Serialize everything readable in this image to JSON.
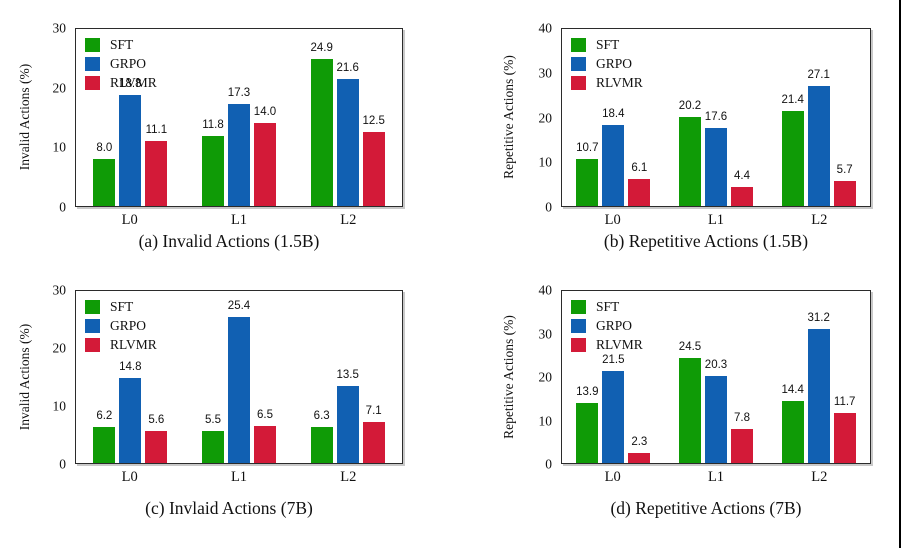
{
  "page": {
    "background": "#ffffff",
    "right_edge_line_color": "#000000"
  },
  "legend": {
    "items": [
      {
        "label": "SFT",
        "color": "#0f9b06"
      },
      {
        "label": "GRPO",
        "color": "#1160b2"
      },
      {
        "label": "RLVMR",
        "color": "#d31a38"
      }
    ],
    "position": "upper-left"
  },
  "chart_data": [
    {
      "type": "bar",
      "caption": "(a) Invalid Actions (1.5B)",
      "ylabel": "Invalid Actions (%)",
      "xlabel": "",
      "categories": [
        "L0",
        "L1",
        "L2"
      ],
      "series": [
        {
          "name": "SFT",
          "color": "#0f9b06",
          "values": [
            8.0,
            11.8,
            24.9
          ]
        },
        {
          "name": "GRPO",
          "color": "#1160b2",
          "values": [
            18.8,
            17.3,
            21.6
          ]
        },
        {
          "name": "RLVMR",
          "color": "#d31a38",
          "values": [
            11.1,
            14.0,
            12.5
          ]
        }
      ],
      "ylim": [
        0,
        30
      ],
      "yticks": [
        0,
        10,
        20,
        30
      ],
      "grid": false,
      "legend_position": "upper-left",
      "value_labels": true
    },
    {
      "type": "bar",
      "caption": "(b) Repetitive Actions (1.5B)",
      "ylabel": "Repetitive Actions (%)",
      "xlabel": "",
      "categories": [
        "L0",
        "L1",
        "L2"
      ],
      "series": [
        {
          "name": "SFT",
          "color": "#0f9b06",
          "values": [
            10.7,
            20.2,
            21.4
          ]
        },
        {
          "name": "GRPO",
          "color": "#1160b2",
          "values": [
            18.4,
            17.6,
            27.1
          ]
        },
        {
          "name": "RLVMR",
          "color": "#d31a38",
          "values": [
            6.1,
            4.4,
            5.7
          ]
        }
      ],
      "ylim": [
        0,
        40
      ],
      "yticks": [
        0,
        10,
        20,
        30,
        40
      ],
      "grid": false,
      "legend_position": "upper-left",
      "value_labels": true
    },
    {
      "type": "bar",
      "caption": "(c) Invlaid Actions (7B)",
      "ylabel": "Invalid Actions (%)",
      "xlabel": "",
      "categories": [
        "L0",
        "L1",
        "L2"
      ],
      "series": [
        {
          "name": "SFT",
          "color": "#0f9b06",
          "values": [
            6.2,
            5.5,
            6.3
          ]
        },
        {
          "name": "GRPO",
          "color": "#1160b2",
          "values": [
            14.8,
            25.4,
            13.5
          ]
        },
        {
          "name": "RLVMR",
          "color": "#d31a38",
          "values": [
            5.6,
            6.5,
            7.1
          ]
        }
      ],
      "ylim": [
        0,
        30
      ],
      "yticks": [
        0,
        10,
        20,
        30
      ],
      "grid": false,
      "legend_position": "upper-left",
      "value_labels": true
    },
    {
      "type": "bar",
      "caption": "(d) Repetitive Actions (7B)",
      "ylabel": "Repetitive Actions (%)",
      "xlabel": "",
      "categories": [
        "L0",
        "L1",
        "L2"
      ],
      "series": [
        {
          "name": "SFT",
          "color": "#0f9b06",
          "values": [
            13.9,
            24.5,
            14.4
          ]
        },
        {
          "name": "GRPO",
          "color": "#1160b2",
          "values": [
            21.5,
            20.3,
            31.2
          ]
        },
        {
          "name": "RLVMR",
          "color": "#d31a38",
          "values": [
            2.3,
            7.8,
            11.7
          ]
        }
      ],
      "ylim": [
        0,
        40
      ],
      "yticks": [
        0,
        10,
        20,
        30,
        40
      ],
      "grid": false,
      "legend_position": "upper-left",
      "value_labels": true
    }
  ]
}
